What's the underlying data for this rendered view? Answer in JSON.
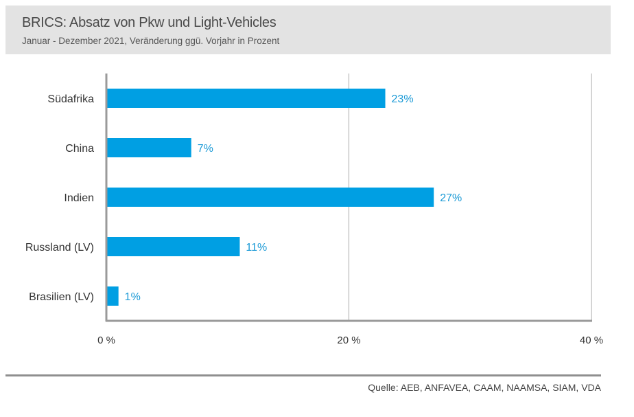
{
  "header": {
    "title": "BRICS: Absatz von Pkw und Light-Vehicles",
    "subtitle": "Januar - Dezember 2021, Veränderung ggü. Vorjahr in Prozent"
  },
  "source": "Quelle: AEB, ANFAVEA, CAAM, NAAMSA, SIAM, VDA",
  "chart_data": {
    "type": "bar",
    "orientation": "horizontal",
    "title": "BRICS: Absatz von Pkw und Light-Vehicles",
    "subtitle": "Januar - Dezember 2021, Veränderung ggü. Vorjahr in Prozent",
    "categories": [
      "Südafrika",
      "China",
      "Indien",
      "Russland (LV)",
      "Brasilien (LV)"
    ],
    "values": [
      23,
      7,
      27,
      11,
      1
    ],
    "value_labels": [
      "23%",
      "7%",
      "27%",
      "11%",
      "1%"
    ],
    "xlim": [
      0,
      40
    ],
    "x_ticks": [
      0,
      20,
      40
    ],
    "x_tick_labels": [
      "0 %",
      "20 %",
      "40 %"
    ],
    "grid": "vertical",
    "legend": "none",
    "bar_color": "#009fe3",
    "label_color": "#1b9ad6"
  }
}
